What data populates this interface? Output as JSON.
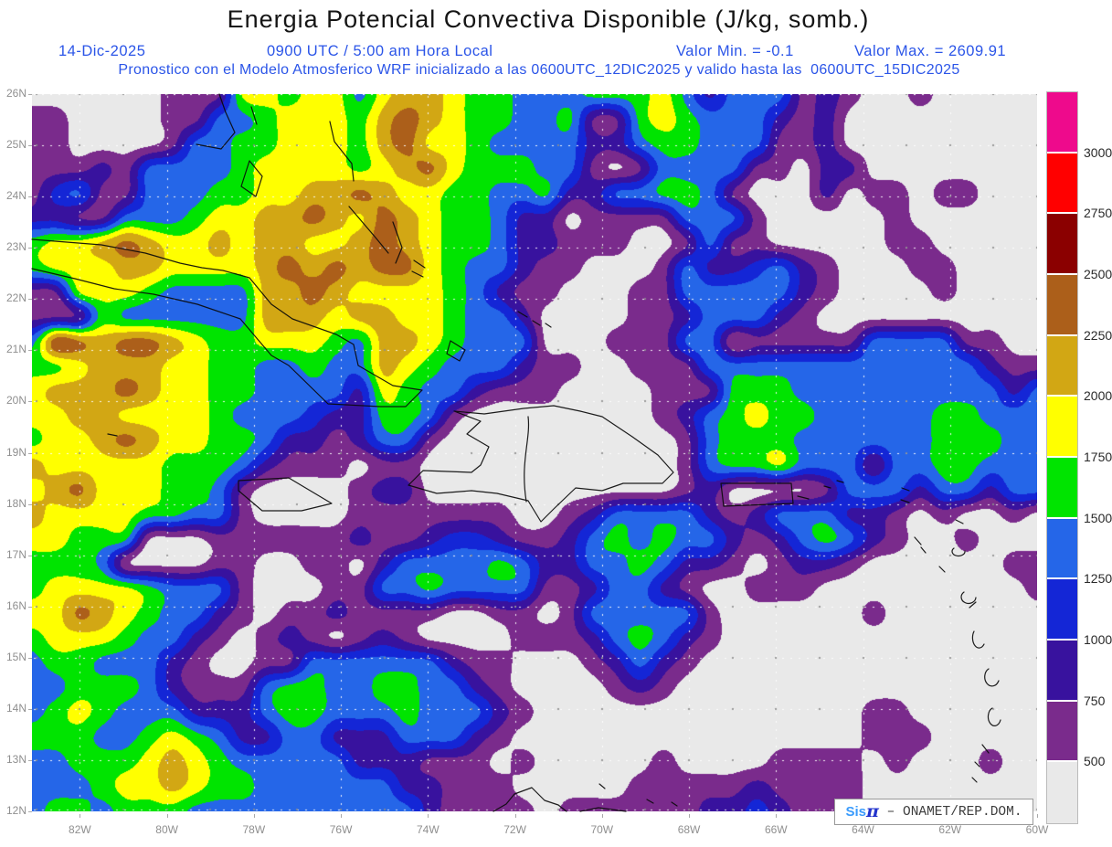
{
  "title": "Energia Potencial Convectiva Disponible (J/kg, somb.)",
  "header": {
    "date": "14-Dic-2025",
    "time": "0900 UTC / 5:00 am Hora Local",
    "valor_min": "Valor Min. = -0.1",
    "valor_max": "Valor Max. = 2609.91",
    "forecast_line": "Pronostico con el Modelo Atmosferico WRF inicializado a las 0600UTC_12DIC2025 y valido hasta las  0600UTC_15DIC2025"
  },
  "credit": {
    "sis": "Sis",
    "pi": "π",
    "rest": " – ONAMET/REP.DOM."
  },
  "axes": {
    "lat_labels": [
      "26N",
      "25N",
      "24N",
      "23N",
      "22N",
      "21N",
      "20N",
      "19N",
      "18N",
      "17N",
      "16N",
      "15N",
      "14N",
      "13N",
      "12N"
    ],
    "lon_labels": [
      "82W",
      "80W",
      "78W",
      "76W",
      "74W",
      "72W",
      "70W",
      "68W",
      "66W",
      "64W",
      "62W",
      "60W"
    ]
  },
  "colorbar": {
    "tick_labels": [
      "3000",
      "2750",
      "2500",
      "2250",
      "2000",
      "1750",
      "1500",
      "1250",
      "1000",
      "750",
      "500"
    ],
    "colors_top_to_bottom": [
      "#ee0a8c",
      "#ff0000",
      "#8b0000",
      "#ac5f1a",
      "#d2a714",
      "#ffff00",
      "#00e400",
      "#2566e8",
      "#1426d6",
      "#38129e",
      "#7a2b8c",
      "#e9e9e9"
    ]
  },
  "chart_data": {
    "type": "heatmap",
    "title": "Energia Potencial Convectiva Disponible",
    "units": "J/kg",
    "valor_min": -0.1,
    "valor_max": 2609.91,
    "lon_range_west_deg": [
      83.1,
      60.0
    ],
    "lat_range_north_deg": [
      12.0,
      26.0
    ],
    "level_thresholds": [
      0,
      500,
      750,
      1000,
      1250,
      1500,
      1750,
      2000,
      2250,
      2500,
      2750,
      3000
    ],
    "palette": [
      "#e9e9e9",
      "#7a2b8c",
      "#38129e",
      "#1426d6",
      "#2566e8",
      "#00e400",
      "#ffff00",
      "#d2a714",
      "#ac5f1a",
      "#8b0000",
      "#ff0000",
      "#ee0a8c"
    ],
    "grid_encoding": "each char = color-level index 0-9,A,B; rows north to south, cols west to east",
    "cols": 44,
    "rows": 30,
    "grid_rows": [
      "00000011166566467765544455564244412100100000",
      "11000011445666578765544511565444212000000000",
      "11000014455666578665444422455444112000000000",
      "11121444456666567865554410144441102200000000",
      "13411444556677876655445224455410002011011000",
      "22114445667787687655422011114441000001000000",
      "56678766767766787655422111001411000001100000",
      "56667766667878788654421100014223421000110000",
      "11666544447787666654211000114444421000010000",
      "11154444447776776654420000112444210000000000",
      "49878876556665477654440001114401111144441100",
      "55677766554454476544421100111444444444444211",
      "67778766554444265442111000011155544444444424",
      "66776666544432255410000000012456554444455444",
      "56678766554221244100000000001455544444455544",
      "76666655542111011000000000001455644414455444",
      "67866655410000122000000000001200001444244244",
      "76666554410000111111100124444212444221010010",
      "66555000111111211233211245454421245421001000",
      "55540000110011024444542244542210122100000011",
      "56666544410001144544441124421001110000000001",
      "66876544210112111100110144444100000010000000",
      "56665442101210121000011124542100000000000000",
      "45544421001144444421100012421000000000000000",
      "44555421114554455442100001210000000000000000",
      "45654442224554445444210000000000000011000000",
      "55544565422442224442100000000000000011100000",
      "44555676544444222111010000010000111101000100",
      "44456676554444442211100000111112111100000000",
      "45545554444444444211110111111223211100000000"
    ]
  }
}
